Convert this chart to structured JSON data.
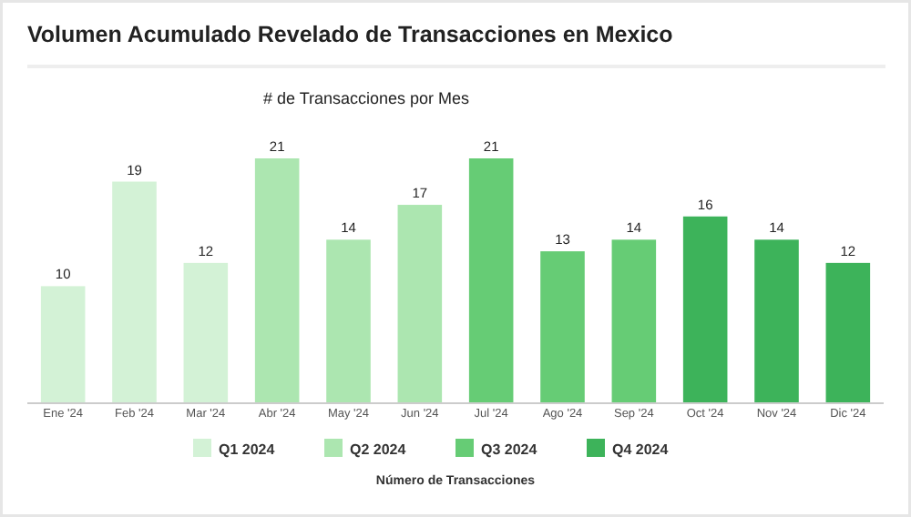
{
  "chart_data": {
    "type": "bar",
    "title": "Volumen Acumulado Revelado de Transacciones en Mexico",
    "subtitle": "# de Transacciones por Mes",
    "xlabel": "Número de Transacciones",
    "data_labels": true,
    "legend": "bottom",
    "categories": [
      "Ene '24",
      "Feb '24",
      "Mar '24",
      "Abr '24",
      "May '24",
      "Jun '24",
      "Jul '24",
      "Ago '24",
      "Sep '24",
      "Oct '24",
      "Nov '24",
      "Dic '24"
    ],
    "series": [
      {
        "name": "Q1 2024",
        "color": "#d3f2d6",
        "values": [
          10,
          19,
          12,
          null,
          null,
          null,
          null,
          null,
          null,
          null,
          null,
          null
        ]
      },
      {
        "name": "Q2 2024",
        "color": "#ace6b0",
        "values": [
          null,
          null,
          null,
          21,
          14,
          17,
          null,
          null,
          null,
          null,
          null,
          null
        ]
      },
      {
        "name": "Q3 2024",
        "color": "#66cc75",
        "values": [
          null,
          null,
          null,
          null,
          null,
          null,
          21,
          13,
          14,
          null,
          null,
          null
        ]
      },
      {
        "name": "Q4 2024",
        "color": "#3db35a",
        "values": [
          null,
          null,
          null,
          null,
          null,
          null,
          null,
          null,
          null,
          16,
          14,
          12
        ]
      }
    ]
  }
}
